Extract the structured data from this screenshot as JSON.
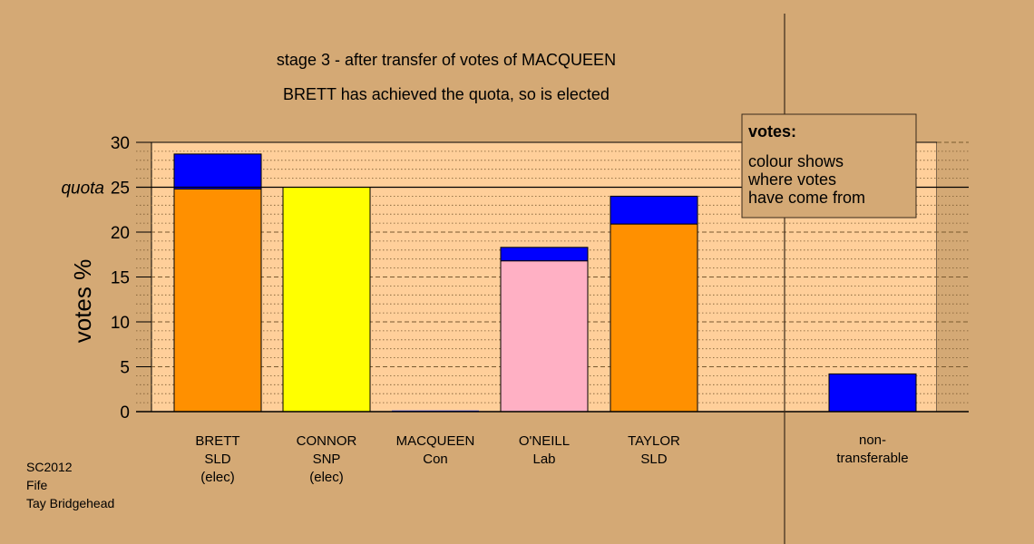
{
  "chart_data": {
    "type": "bar",
    "title": "stage 3 - after transfer of votes of MACQUEEN",
    "subtitle": "BRETT has achieved the quota, so is elected",
    "ylabel": "votes %",
    "ylim": [
      0,
      30
    ],
    "yticks": [
      0,
      5,
      10,
      15,
      20,
      25,
      30
    ],
    "quota": 25,
    "quota_label": "quota",
    "categories": [
      [
        "BRETT",
        "SLD",
        "(elec)"
      ],
      [
        "CONNOR",
        "SNP",
        "(elec)"
      ],
      [
        "MACQUEEN",
        "Con"
      ],
      [
        "O'NEILL",
        "Lab"
      ],
      [
        "TAYLOR",
        "SLD"
      ],
      [
        "non-",
        "transferable"
      ]
    ],
    "bars": [
      {
        "candidate": "BRETT",
        "base": 24.8,
        "transfer": 3.9,
        "base_color": "#ff9000"
      },
      {
        "candidate": "CONNOR",
        "base": 25.0,
        "transfer": 0,
        "base_color": "#ffff00"
      },
      {
        "candidate": "MACQUEEN",
        "base": 0,
        "transfer": 0,
        "base_color": "#1a3aff"
      },
      {
        "candidate": "O'NEILL",
        "base": 16.8,
        "transfer": 1.5,
        "base_color": "#ffb0c4"
      },
      {
        "candidate": "TAYLOR",
        "base": 20.9,
        "transfer": 3.1,
        "base_color": "#ff9000"
      },
      {
        "candidate": "non-transferable",
        "base": 0,
        "transfer": 4.2,
        "base_color": "#0000ff"
      }
    ],
    "transfer_color": "#0000ff",
    "legend": {
      "title": "votes:",
      "lines": [
        "colour shows",
        "where votes",
        "have come from"
      ],
      "placement": "top-right"
    }
  },
  "footnote": {
    "election": "SC2012",
    "council": "Fife",
    "ward": "Tay Bridgehead"
  }
}
